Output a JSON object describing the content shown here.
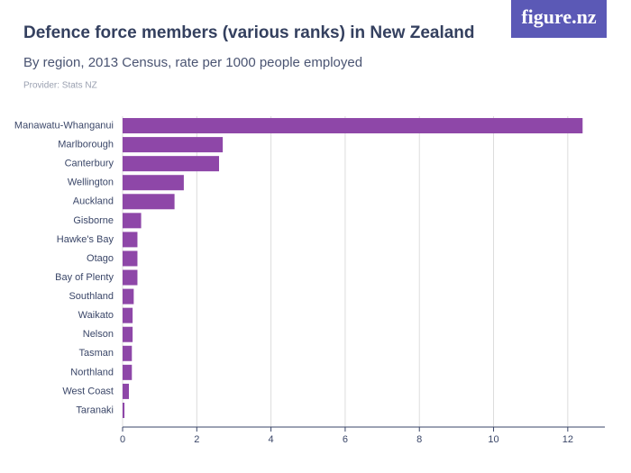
{
  "chart_data": {
    "type": "hbar",
    "title": "Defence force members (various ranks) in New Zealand",
    "subtitle": "By region, 2013 Census, rate per 1000 people employed",
    "provider": "Provider: Stats NZ",
    "logo": "figure.nz",
    "categories": [
      "Manawatu-Whanganui",
      "Marlborough",
      "Canterbury",
      "Wellington",
      "Auckland",
      "Gisborne",
      "Hawke's Bay",
      "Otago",
      "Bay of Plenty",
      "Southland",
      "Waikato",
      "Nelson",
      "Tasman",
      "Northland",
      "West Coast",
      "Taranaki"
    ],
    "values": [
      12.4,
      2.7,
      2.6,
      1.65,
      1.4,
      0.5,
      0.4,
      0.4,
      0.4,
      0.3,
      0.27,
      0.27,
      0.25,
      0.25,
      0.17,
      0.05
    ],
    "color": "#8e47a8",
    "xlim": [
      0,
      13
    ],
    "xticks": [
      0,
      2,
      4,
      6,
      8,
      10,
      12
    ],
    "grid": true
  }
}
